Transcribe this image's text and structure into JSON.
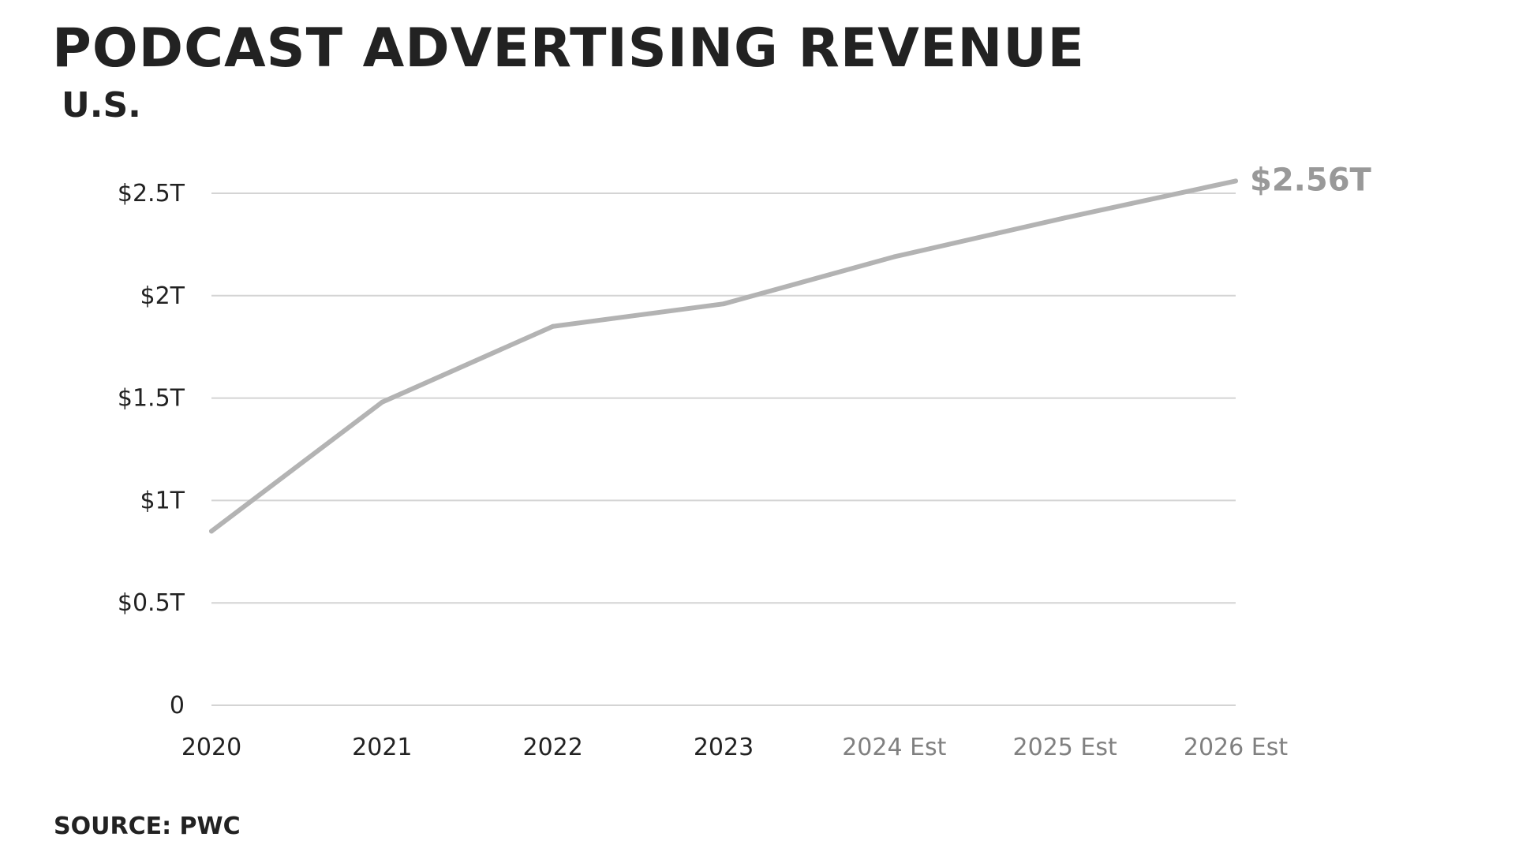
{
  "header": {
    "title": "PODCAST ADVERTISING REVENUE",
    "subtitle": "U.S."
  },
  "footer": {
    "source": "SOURCE: PWC"
  },
  "colors": {
    "line": "#b3b3b3",
    "grid": "#d4d4d4",
    "text": "#222222",
    "estimate_text": "#808080",
    "end_label": "#999999"
  },
  "chart_data": {
    "type": "line",
    "title": "PODCAST ADVERTISING REVENUE",
    "subtitle": "U.S.",
    "categories": [
      "2020",
      "2021",
      "2022",
      "2023",
      "2024 Est",
      "2025 Est",
      "2026 Est"
    ],
    "estimate_categories": [
      "2024 Est",
      "2025 Est",
      "2026 Est"
    ],
    "series": [
      {
        "values": [
          0.85,
          1.48,
          1.85,
          1.96,
          2.19,
          2.38,
          2.56
        ]
      }
    ],
    "end_label": "$2.56T",
    "yticks": [
      {
        "value": 0,
        "label": "0"
      },
      {
        "value": 0.5,
        "label": "$0.5T"
      },
      {
        "value": 1,
        "label": "$1T"
      },
      {
        "value": 1.5,
        "label": "$1.5T"
      },
      {
        "value": 2,
        "label": "$2T"
      },
      {
        "value": 2.5,
        "label": "$2.5T"
      }
    ],
    "ylim": [
      0,
      2.5
    ],
    "grid": true,
    "legend": "none",
    "source": "SOURCE: PWC"
  }
}
